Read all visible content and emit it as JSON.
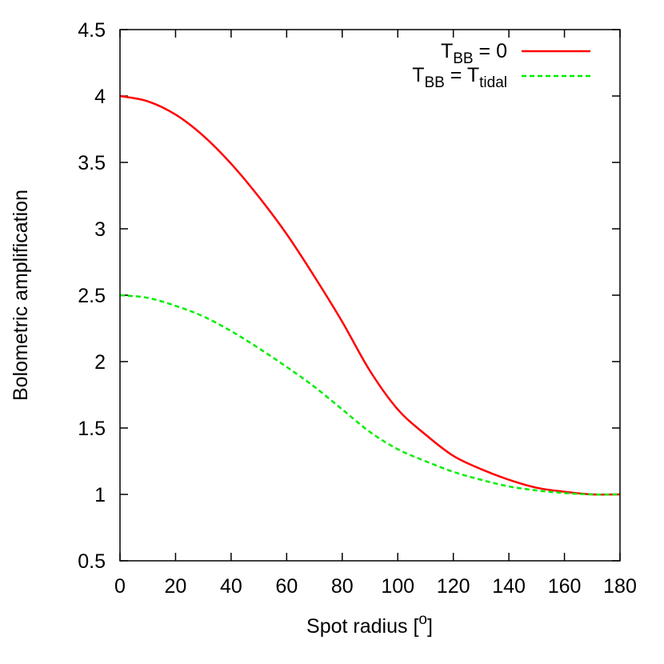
{
  "chart_data": {
    "type": "line",
    "xlabel": "Spot radius [",
    "xlabel_sup": "o",
    "xlabel_end": "]",
    "ylabel": "Bolometric amplification",
    "xlim": [
      0,
      180
    ],
    "ylim": [
      0.5,
      4.5
    ],
    "x_ticks": [
      "0",
      "20",
      "40",
      "60",
      "80",
      "100",
      "120",
      "140",
      "160",
      "180"
    ],
    "y_ticks": [
      "0.5",
      "1",
      "1.5",
      "2",
      "2.5",
      "3",
      "3.5",
      "4",
      "4.5"
    ],
    "grid": false,
    "legend_position": "top-right",
    "series": [
      {
        "legend_main": "T",
        "legend_sub": "BB",
        "legend_rest": " = 0",
        "legend_rest_sub": "",
        "color": "#ff0000",
        "dash": "solid",
        "x": [
          0,
          10,
          20,
          30,
          40,
          50,
          60,
          70,
          80,
          90,
          100,
          110,
          120,
          130,
          140,
          150,
          160,
          170,
          180
        ],
        "y": [
          4.0,
          3.96,
          3.86,
          3.7,
          3.49,
          3.24,
          2.96,
          2.64,
          2.3,
          1.93,
          1.64,
          1.45,
          1.29,
          1.19,
          1.11,
          1.05,
          1.02,
          1.0,
          1.0
        ]
      },
      {
        "legend_main": "T",
        "legend_sub": "BB",
        "legend_rest": " = T",
        "legend_rest_sub": "tidal",
        "color": "#00ee00",
        "dash": "dashed",
        "x": [
          0,
          10,
          20,
          30,
          40,
          50,
          60,
          70,
          80,
          90,
          100,
          110,
          120,
          130,
          140,
          150,
          160,
          170,
          180
        ],
        "y": [
          2.5,
          2.48,
          2.42,
          2.34,
          2.23,
          2.1,
          1.96,
          1.81,
          1.64,
          1.47,
          1.34,
          1.25,
          1.17,
          1.11,
          1.06,
          1.03,
          1.01,
          1.0,
          1.0
        ]
      }
    ]
  }
}
